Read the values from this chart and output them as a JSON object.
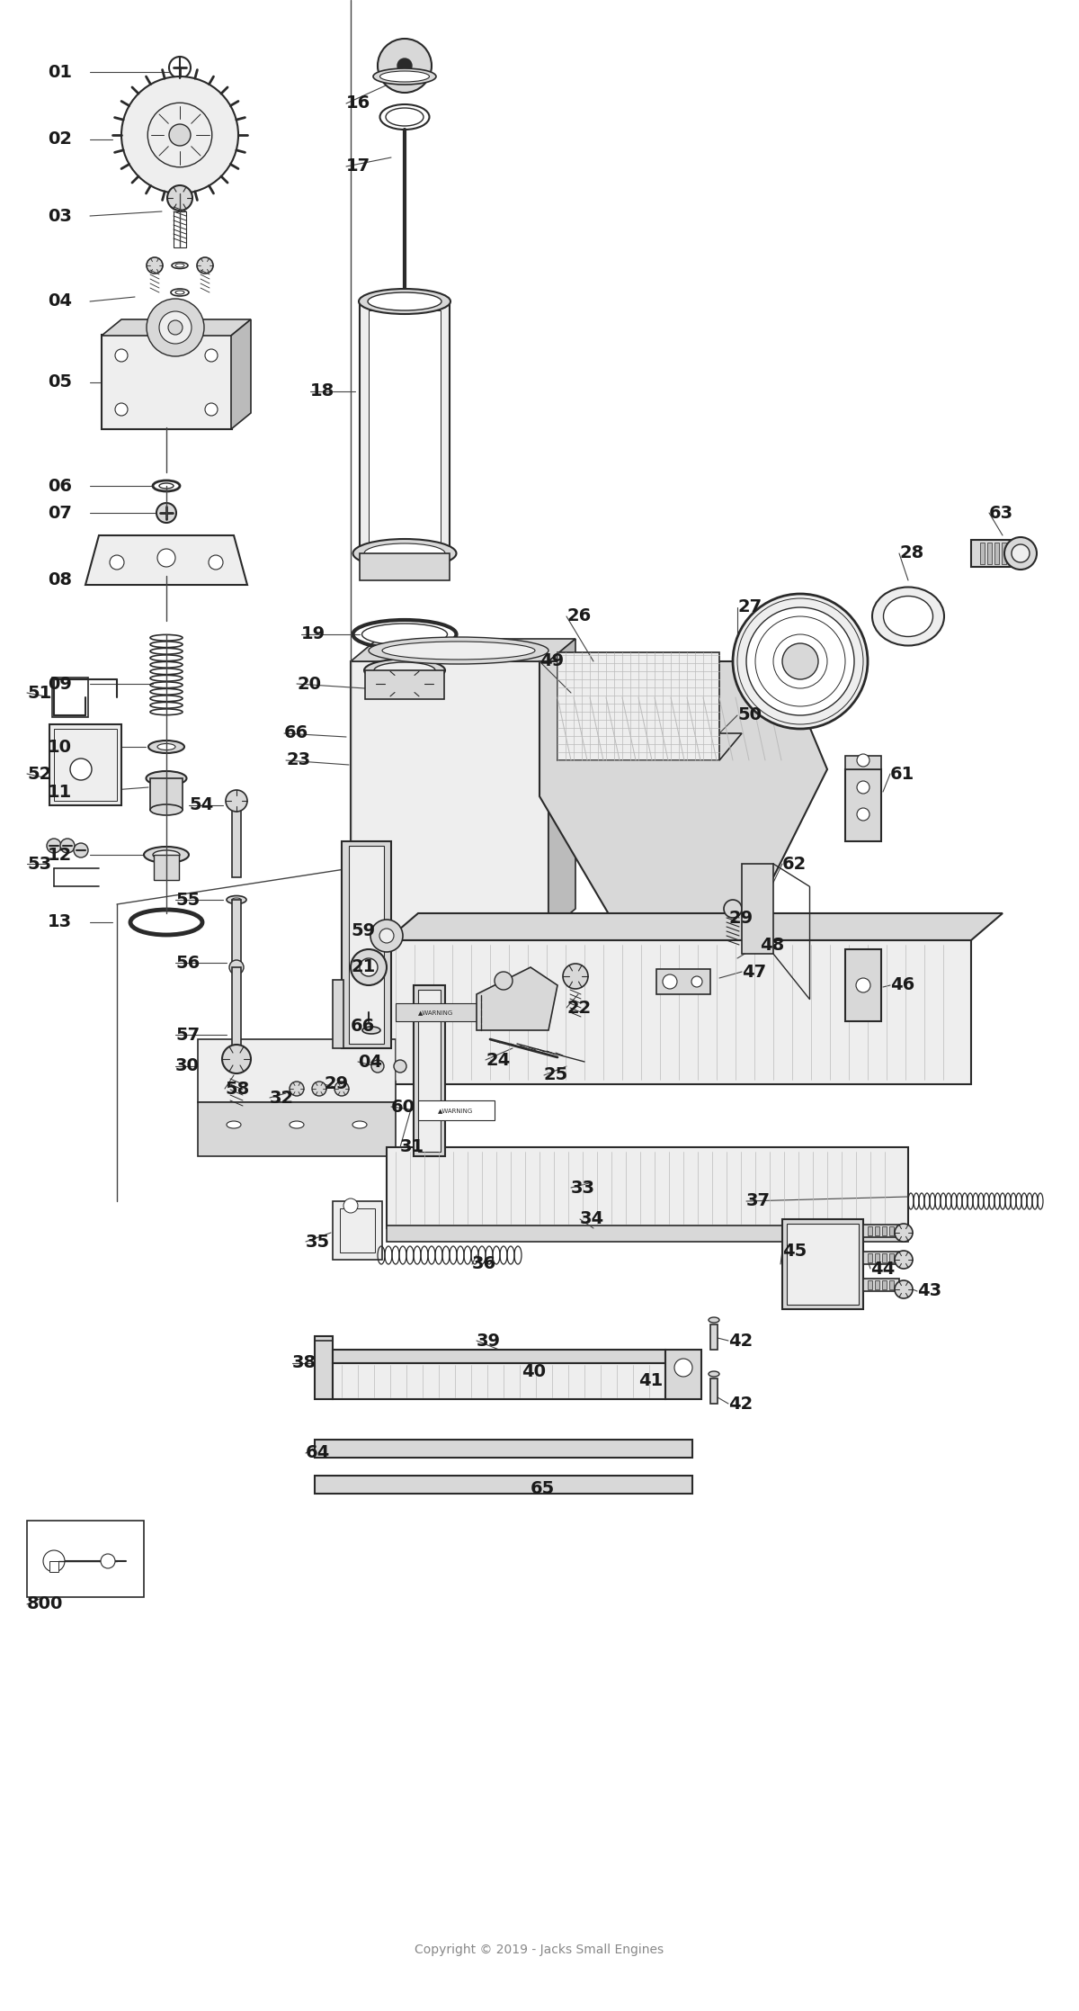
{
  "copyright": "Copyright © 2019 - Jacks Small Engines",
  "bg_color": "#ffffff",
  "fig_width": 12.0,
  "fig_height": 22.35,
  "diagram_color": "#2a2a2a",
  "label_color": "#1a1a1a",
  "line_color": "#444444",
  "gray_fill": "#d8d8d8",
  "dark_gray": "#888888",
  "mid_gray": "#bbbbbb",
  "light_gray": "#eeeeee"
}
